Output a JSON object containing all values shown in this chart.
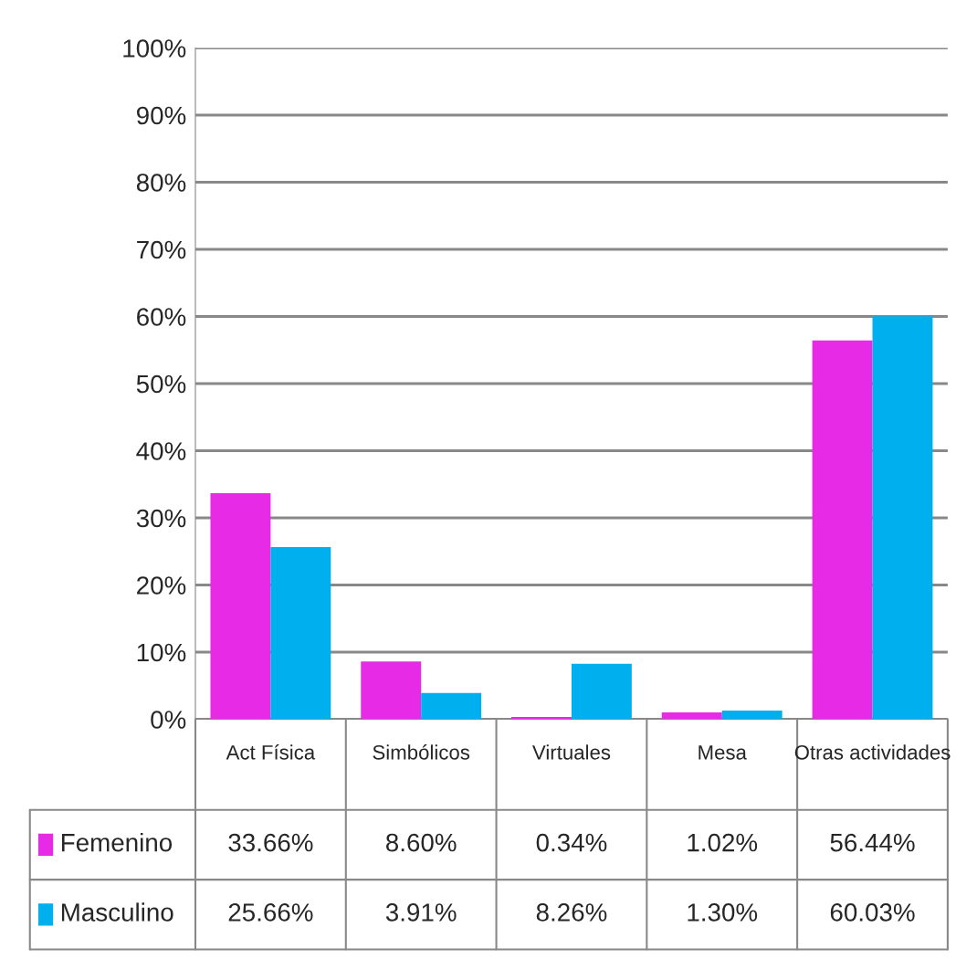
{
  "chart_data": {
    "type": "bar",
    "categories": [
      "Act Física",
      "Simbólicos",
      "Virtuales",
      "Mesa",
      "Otras actividades"
    ],
    "series": [
      {
        "name": "Femenino",
        "color": "#e62ae6",
        "values": [
          33.66,
          8.6,
          0.34,
          1.02,
          56.44
        ],
        "value_labels": [
          "33.66%",
          "8.60%",
          "0.34%",
          "1.02%",
          "56.44%"
        ]
      },
      {
        "name": "Masculino",
        "color": "#00b0ee",
        "values": [
          25.66,
          3.91,
          8.26,
          1.3,
          60.03
        ],
        "value_labels": [
          "25.66%",
          "3.91%",
          "8.26%",
          "1.30%",
          "60.03%"
        ]
      }
    ],
    "ylim": [
      0,
      100
    ],
    "yticks": [
      {
        "value": 0,
        "label": "0%"
      },
      {
        "value": 10,
        "label": "10%"
      },
      {
        "value": 20,
        "label": "20%"
      },
      {
        "value": 30,
        "label": "30%"
      },
      {
        "value": 40,
        "label": "40%"
      },
      {
        "value": 50,
        "label": "50%"
      },
      {
        "value": 60,
        "label": "60%"
      },
      {
        "value": 70,
        "label": "70%"
      },
      {
        "value": 80,
        "label": "80%"
      },
      {
        "value": 90,
        "label": "90%"
      },
      {
        "value": 100,
        "label": "100%"
      }
    ],
    "grid": "y",
    "legend": "bottom left"
  }
}
